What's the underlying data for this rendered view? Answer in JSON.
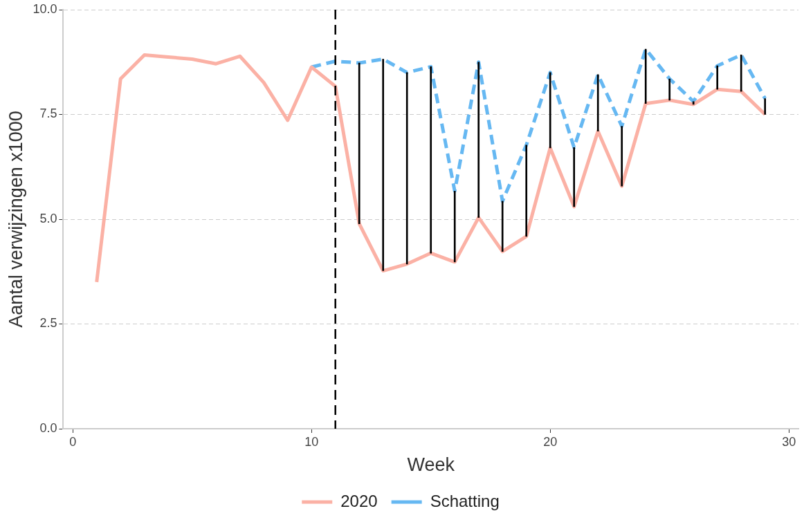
{
  "chart_data": {
    "type": "line",
    "xlabel": "Week",
    "ylabel": "Aantal verwijzingen x1000",
    "x": [
      1,
      2,
      3,
      4,
      5,
      6,
      7,
      8,
      9,
      10,
      11,
      12,
      13,
      14,
      15,
      16,
      17,
      18,
      19,
      20,
      21,
      22,
      23,
      24,
      25,
      26,
      27,
      28,
      29
    ],
    "series": [
      {
        "name": "2020",
        "color": "#fbb1a5",
        "line_style": "solid",
        "values": [
          3.5,
          8.35,
          8.92,
          8.87,
          8.82,
          8.71,
          8.89,
          8.26,
          7.36,
          8.63,
          8.17,
          4.89,
          3.77,
          3.93,
          4.19,
          3.98,
          5.04,
          4.23,
          4.59,
          6.7,
          5.3,
          7.1,
          5.79,
          7.76,
          7.84,
          7.74,
          8.1,
          8.05,
          7.5
        ]
      },
      {
        "name": "Schatting",
        "color": "#66b8f2",
        "line_style": "dashed",
        "values": [
          null,
          null,
          null,
          null,
          null,
          null,
          null,
          null,
          null,
          8.63,
          8.77,
          8.73,
          8.82,
          8.5,
          8.64,
          5.67,
          8.75,
          5.43,
          6.77,
          8.5,
          6.71,
          8.45,
          7.22,
          9.06,
          8.35,
          7.81,
          8.66,
          8.92,
          7.88
        ]
      },
      {
        "type": "bar",
        "color": "#000000",
        "x": [
          12,
          13,
          14,
          15,
          16,
          17,
          18,
          19,
          20,
          21,
          22,
          23,
          24,
          25,
          26,
          27,
          28,
          29
        ],
        "base": [
          4.89,
          3.77,
          3.93,
          4.19,
          3.98,
          5.04,
          4.23,
          4.59,
          6.7,
          5.3,
          7.1,
          5.79,
          7.76,
          7.84,
          7.74,
          8.1,
          8.05,
          7.5
        ],
        "values": [
          3.84,
          5.05,
          4.57,
          4.45,
          1.69,
          3.71,
          1.2,
          2.18,
          1.8,
          1.41,
          1.35,
          1.43,
          1.3,
          0.51,
          0.07,
          0.56,
          0.87,
          0.38
        ]
      }
    ],
    "xlim": [
      -0.4,
      30.4
    ],
    "xticks": [
      0,
      10,
      20,
      30
    ],
    "ylim": [
      0,
      10
    ],
    "yticks": [
      {
        "value": 0,
        "label": "0.0"
      },
      {
        "value": 2.5,
        "label": "2.5"
      },
      {
        "value": 5,
        "label": "5.0"
      },
      {
        "value": 7.5,
        "label": "7.5"
      },
      {
        "value": 10,
        "label": "10.0"
      }
    ],
    "ref_lines": [
      {
        "axis": "x",
        "value": 11,
        "color": "#000000",
        "line_style": "dashed"
      }
    ],
    "grid": "y",
    "legend": "bottom",
    "marker": "none"
  }
}
